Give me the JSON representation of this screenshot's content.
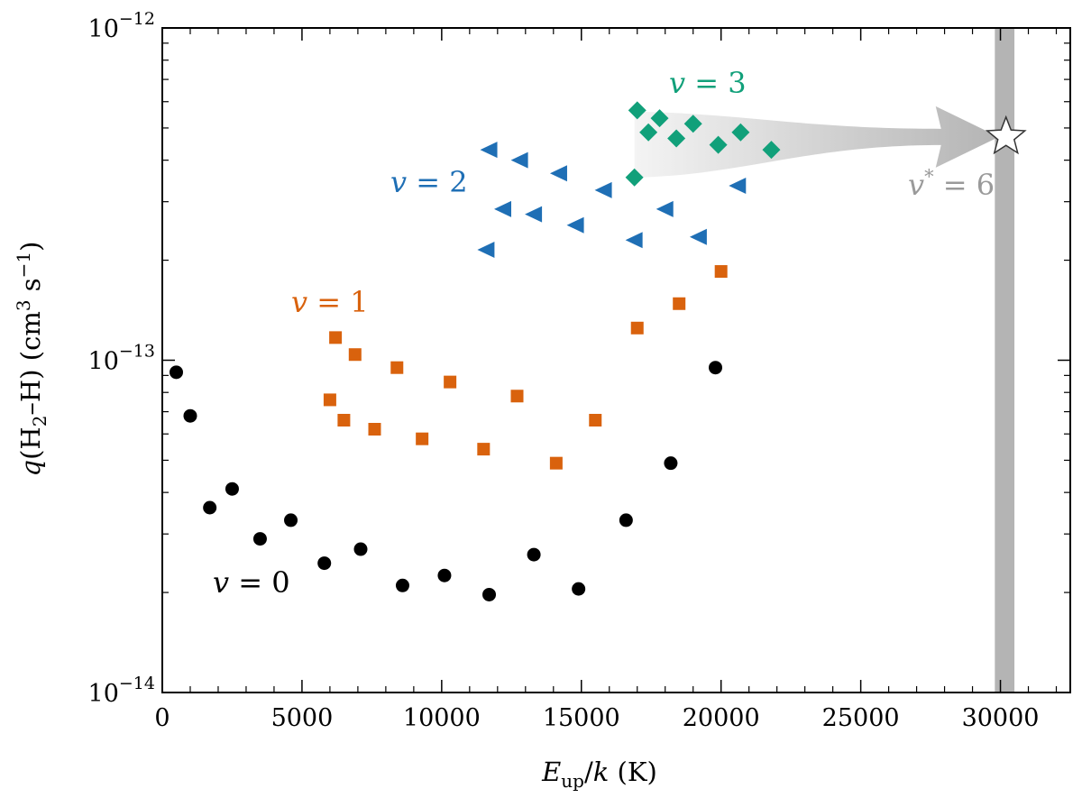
{
  "chart_data": {
    "type": "scatter",
    "title": "",
    "xlabel": "E_up/k (K)",
    "ylabel": "q(H2–H) (cm3 s−1)",
    "xlim": [
      0,
      32500
    ],
    "ylim": [
      1e-14,
      1e-12
    ],
    "yscale": "log",
    "x_ticks": [
      0,
      5000,
      10000,
      15000,
      20000,
      25000,
      30000
    ],
    "x_tick_labels": [
      "0",
      "5000",
      "10000",
      "15000",
      "20000",
      "25000",
      "30000"
    ],
    "y_major_ticks": [
      1e-14,
      1e-13,
      1e-12
    ],
    "y_tick_labels": [
      {
        "base": "10",
        "exp": "−14"
      },
      {
        "base": "10",
        "exp": "−13"
      },
      {
        "base": "10",
        "exp": "−12"
      }
    ],
    "axis_title_x": {
      "main": "E",
      "sub": "up",
      "rest": "/",
      "k": "k",
      "unit": " (K)"
    },
    "axis_title_y": {
      "q": "q",
      "open": "(H",
      "sub2": "2",
      "mid": "–H) (cm",
      "sup3": "3",
      "s": " s",
      "supm1": "−1",
      "close": ")"
    },
    "series": [
      {
        "name": "v = 0",
        "label_v": "v",
        "label_rest": " = 0",
        "color": "#000000",
        "marker": "circle",
        "points": [
          [
            500,
            9.2e-14
          ],
          [
            1000,
            6.8e-14
          ],
          [
            1700,
            3.6e-14
          ],
          [
            2500,
            4.1e-14
          ],
          [
            3500,
            2.9e-14
          ],
          [
            4600,
            3.3e-14
          ],
          [
            5800,
            2.45e-14
          ],
          [
            7100,
            2.7e-14
          ],
          [
            8600,
            2.1e-14
          ],
          [
            10100,
            2.25e-14
          ],
          [
            11700,
            1.97e-14
          ],
          [
            13300,
            2.6e-14
          ],
          [
            14900,
            2.05e-14
          ],
          [
            16600,
            3.3e-14
          ],
          [
            18200,
            4.9e-14
          ],
          [
            19800,
            9.5e-14
          ]
        ]
      },
      {
        "name": "v = 1",
        "label_v": "v",
        "label_rest": " = 1",
        "color": "#d9620d",
        "marker": "square",
        "points": [
          [
            6000,
            7.6e-14
          ],
          [
            6200,
            1.17e-13
          ],
          [
            6500,
            6.6e-14
          ],
          [
            6900,
            1.04e-13
          ],
          [
            7600,
            6.2e-14
          ],
          [
            8400,
            9.5e-14
          ],
          [
            9300,
            5.8e-14
          ],
          [
            10300,
            8.6e-14
          ],
          [
            11500,
            5.4e-14
          ],
          [
            12700,
            7.8e-14
          ],
          [
            14100,
            4.9e-14
          ],
          [
            15500,
            6.6e-14
          ],
          [
            17000,
            1.25e-13
          ],
          [
            18500,
            1.48e-13
          ],
          [
            20000,
            1.85e-13
          ]
        ]
      },
      {
        "name": "v = 2",
        "label_v": "v",
        "label_rest": " = 2",
        "color": "#1f6fb5",
        "marker": "triangle-left",
        "points": [
          [
            11600,
            2.15e-13
          ],
          [
            11700,
            4.3e-13
          ],
          [
            12200,
            2.85e-13
          ],
          [
            12800,
            4e-13
          ],
          [
            13300,
            2.75e-13
          ],
          [
            14200,
            3.65e-13
          ],
          [
            14800,
            2.55e-13
          ],
          [
            15800,
            3.25e-13
          ],
          [
            16900,
            2.3e-13
          ],
          [
            18000,
            2.85e-13
          ],
          [
            19200,
            2.35e-13
          ],
          [
            20600,
            3.35e-13
          ]
        ]
      },
      {
        "name": "v = 3",
        "label_v": "v",
        "label_rest": " = 3",
        "color": "#11a07a",
        "marker": "diamond",
        "points": [
          [
            16900,
            3.55e-13
          ],
          [
            17000,
            5.65e-13
          ],
          [
            17400,
            4.85e-13
          ],
          [
            17800,
            5.35e-13
          ],
          [
            18400,
            4.65e-13
          ],
          [
            19000,
            5.15e-13
          ],
          [
            19900,
            4.45e-13
          ],
          [
            20700,
            4.85e-13
          ],
          [
            21800,
            4.3e-13
          ]
        ]
      }
    ],
    "extrapolation": {
      "label_v": "v",
      "label_star": "*",
      "label_rest": " = 6",
      "band_x": [
        29800,
        30500
      ],
      "star_point": [
        30200,
        4.7e-13
      ],
      "arrow_from_x": 16900,
      "arrow_y_range": [
        3.55e-13,
        5.6e-13
      ],
      "color": "#b4b4b4"
    }
  }
}
